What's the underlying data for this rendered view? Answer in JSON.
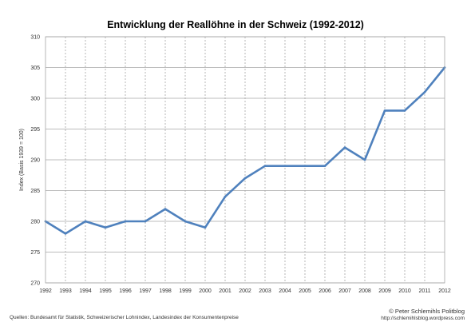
{
  "chart_data": {
    "type": "line",
    "title": "Entwicklung der Reallöhne in der Schweiz (1992-2012)",
    "xlabel": "",
    "ylabel": "Index (Basis 1939 = 100)",
    "x": [
      "1992",
      "1993",
      "1994",
      "1995",
      "1996",
      "1997",
      "1998",
      "1999",
      "2000",
      "2001",
      "2002",
      "2003",
      "2004",
      "2005",
      "2006",
      "2007",
      "2008",
      "2009",
      "2010",
      "2011",
      "2012"
    ],
    "series": [
      {
        "values": [
          280,
          278,
          280,
          279,
          280,
          280,
          282,
          280,
          279,
          284,
          287,
          289,
          289,
          289,
          289,
          292,
          290,
          298,
          298,
          301,
          305
        ]
      }
    ],
    "ylim": [
      270,
      310
    ],
    "yticks": [
      270,
      275,
      280,
      285,
      290,
      295,
      300,
      305,
      310
    ],
    "grid": {
      "horizontal": "solid",
      "vertical": "dashed"
    },
    "legend": "none",
    "colors": {
      "line": "#4f81bd",
      "grid": "#a6a6a6",
      "frame": "#a6a6a6"
    }
  },
  "footer": {
    "sources": "Quellen: Bundesamt für Statistik, Schweizerischer Lohnindex, Landesindex der Konsumentenpreise",
    "copyright": "© Peter Schlemihls Politblog",
    "url": "http://schlemihlsblog.wordpress.com"
  }
}
